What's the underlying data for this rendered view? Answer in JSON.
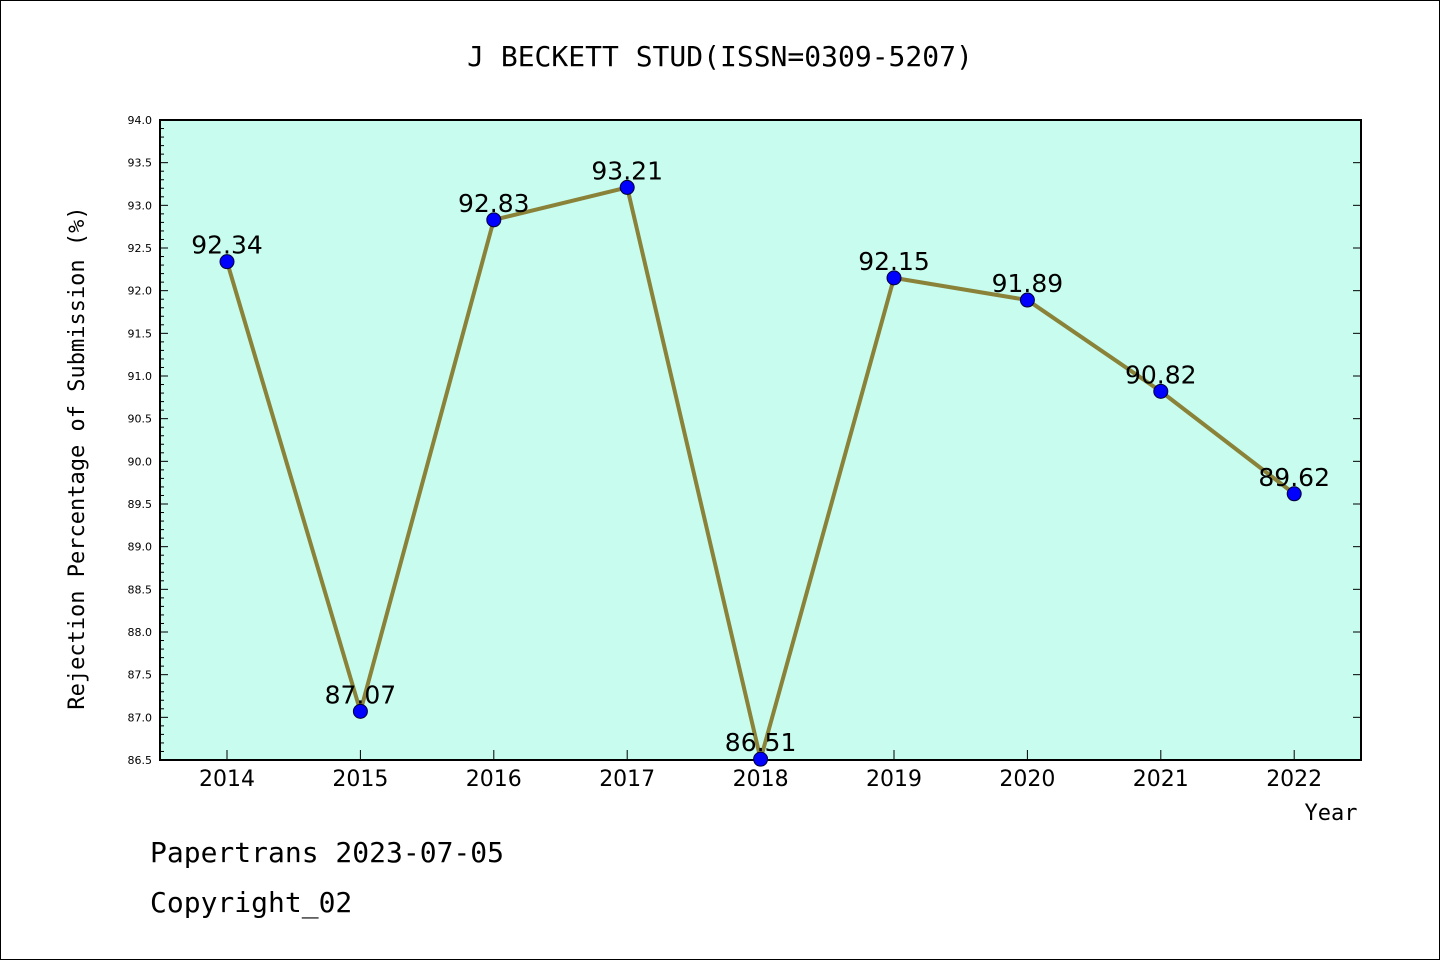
{
  "footer": {
    "line1": "Papertrans 2023-07-05",
    "line2": "Copyright_02"
  },
  "chart_data": {
    "type": "line",
    "title": "J BECKETT STUD(ISSN=0309-5207)",
    "xlabel": "Year",
    "ylabel": "Rejection Percentage of Submission (%)",
    "categories": [
      "2014",
      "2015",
      "2016",
      "2017",
      "2018",
      "2019",
      "2020",
      "2021",
      "2022"
    ],
    "values": [
      92.34,
      87.07,
      92.83,
      93.21,
      86.51,
      92.15,
      91.89,
      90.82,
      89.62
    ],
    "value_labels": [
      "92.34",
      "87.07",
      "92.83",
      "93.21",
      "86.51",
      "92.15",
      "91.89",
      "90.82",
      "89.62"
    ],
    "ylim": [
      86.5,
      94.0
    ],
    "y_ticks": [
      "86.5",
      "87.0",
      "87.5",
      "88.0",
      "88.5",
      "89.0",
      "89.5",
      "90.0",
      "90.5",
      "91.0",
      "91.5",
      "92.0",
      "92.5",
      "93.0",
      "93.5",
      "94.0"
    ],
    "grid": false,
    "colors": {
      "plot_background": "#c8fcee",
      "line": "#8a8238",
      "marker": "#0000ff"
    }
  }
}
